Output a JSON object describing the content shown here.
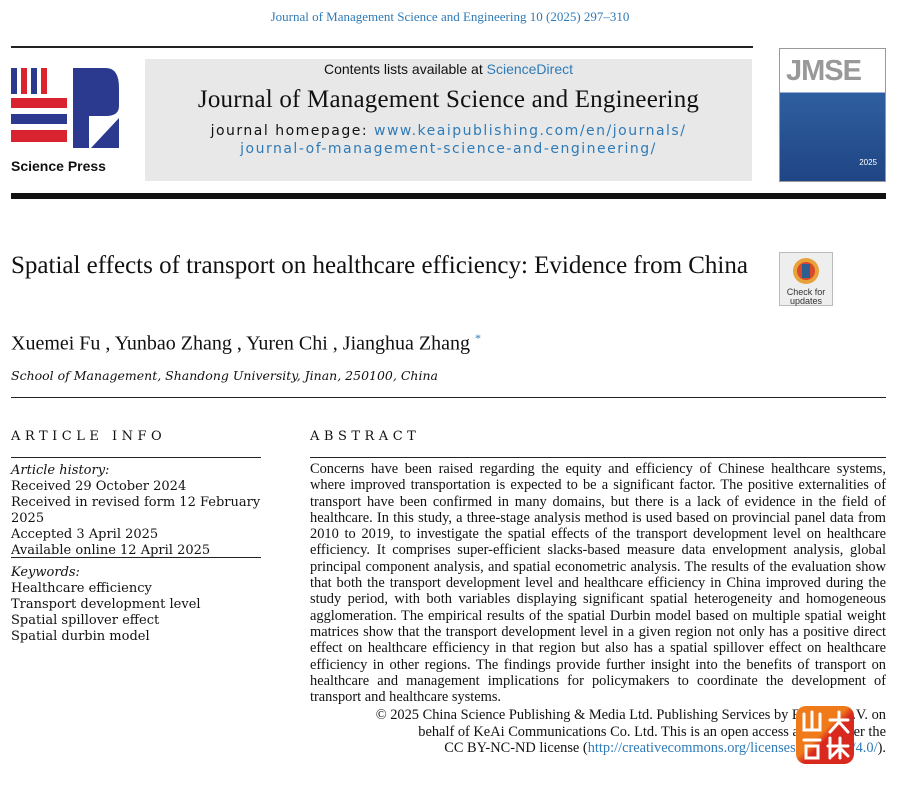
{
  "citation": "Journal of Management Science and Engineering 10 (2025) 297–310",
  "header": {
    "contents_prefix": "Contents lists available at ",
    "contents_link": "ScienceDirect",
    "journal_title": "Journal of Management Science and Engineering",
    "homepage_prefix": "journal homepage: ",
    "homepage_line1": "www.keaipublishing.com/en/journals/",
    "homepage_line2": "journal-of-management-science-and-engineering/",
    "publisher": "Science Press",
    "cover_text": "JMSE",
    "cover_year": "2025"
  },
  "article": {
    "title": "Spatial effects of transport on healthcare efficiency: Evidence from China",
    "check_line1": "Check for",
    "check_line2": "updates",
    "authors": "Xuemei Fu , Yunbao Zhang , Yuren Chi , Jianghua Zhang ",
    "corresponding_mark": "*",
    "affiliation": "School of Management, Shandong University, Jinan, 250100, China"
  },
  "article_info": {
    "heading": "ARTICLE INFO",
    "history_label": "Article history:",
    "history": [
      "Received 29 October 2024",
      "Received in revised form 12 February 2025",
      "Accepted 3 April 2025",
      "Available online 12 April 2025"
    ],
    "keywords_label": "Keywords:",
    "keywords": [
      "Healthcare efficiency",
      "Transport development level",
      "Spatial spillover effect",
      "Spatial durbin model"
    ]
  },
  "abstract": {
    "heading": "ABSTRACT",
    "text": "Concerns have been raised regarding the equity and efficiency of Chinese healthcare systems, where improved transportation is expected to be a significant factor. The positive externalities of transport have been confirmed in many domains, but there is a lack of evidence in the field of healthcare. In this study, a three-stage analysis method is used based on provincial panel data from 2010 to 2019, to investigate the spatial effects of the transport development level on healthcare efficiency. It comprises super-efficient slacks-based measure data envelopment analysis, global principal component analysis, and spatial econometric analysis. The results of the evaluation show that both the transport development level and healthcare efficiency in China improved during the study period, with both variables displaying significant spatial heterogeneity and homogeneous agglomeration. The empirical results of the spatial Durbin model based on multiple spatial weight matrices show that the transport development level in a given region not only has a positive direct effect on healthcare efficiency in that region but also has a spatial spillover effect on healthcare efficiency in other regions. The findings provide further insight into the benefits of transport on healthcare and management implications for policymakers to coordinate the development of transport and healthcare systems.",
    "copyright_line1": "© 2025 China Science Publishing & Media Ltd. Publishing Services by Elsevier B.V. on",
    "copyright_line2": "behalf of KeAi Communications Co. Ltd. This is an open access article under the",
    "copyright_line3_prefix": "CC BY-NC-ND license (",
    "license_link": "http://creativecommons.org/licenses/by-nc-nd/4.0/",
    "copyright_line3_suffix": ")."
  },
  "watermark": {
    "text": "山大融媒",
    "colors": [
      "#f07a1a",
      "#d9281e"
    ]
  }
}
